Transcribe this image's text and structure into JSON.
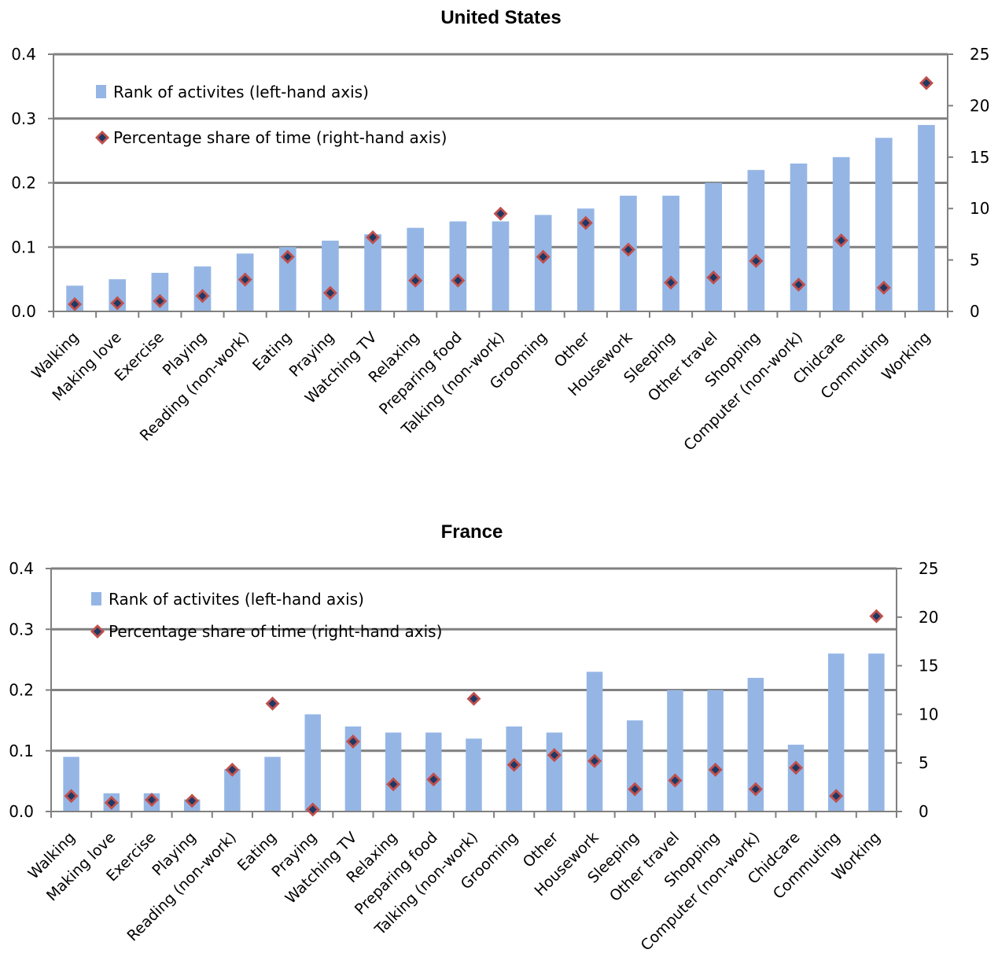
{
  "colors": {
    "bar": "#95B6E5",
    "marker_outer": "#C0504D",
    "marker_inner": "#1F3864",
    "gridline": "#808080",
    "axis": "#808080"
  },
  "chart_data": [
    {
      "type": "bar",
      "title": "United States",
      "categories": [
        "Walking",
        "Making love",
        "Exercise",
        "Playing",
        "Reading (non-work)",
        "Eating",
        "Praying",
        "Watching TV",
        "Relaxing",
        "Preparing food",
        "Talking (non-work)",
        "Grooming",
        "Other",
        "Housework",
        "Sleeping",
        "Other travel",
        "Shopping",
        "Computer (non-work)",
        "Chidcare",
        "Commuting",
        "Working"
      ],
      "series": [
        {
          "name": "Rank of activites (left-hand axis)",
          "axis": "left",
          "kind": "bar",
          "values": [
            0.04,
            0.05,
            0.06,
            0.07,
            0.09,
            0.1,
            0.11,
            0.12,
            0.13,
            0.14,
            0.14,
            0.15,
            0.16,
            0.18,
            0.18,
            0.2,
            0.22,
            0.23,
            0.24,
            0.27,
            0.29
          ]
        },
        {
          "name": "Percentage share of time (right-hand axis)",
          "axis": "right",
          "kind": "marker",
          "values": [
            0.7,
            0.8,
            1.0,
            1.5,
            3.1,
            5.3,
            1.8,
            7.2,
            3.0,
            3.0,
            9.5,
            5.3,
            8.6,
            6.0,
            2.8,
            3.3,
            4.9,
            2.6,
            6.9,
            2.3,
            22.2
          ]
        }
      ],
      "ylim_left": [
        0,
        0.4
      ],
      "ylim_right": [
        0,
        25
      ],
      "left_ticks": [
        "0.0",
        "0.1",
        "0.2",
        "0.3",
        "0.4"
      ],
      "right_ticks": [
        "0",
        "5",
        "10",
        "15",
        "20",
        "25"
      ],
      "gridlines": "horizontal at left-axis ticks",
      "legend": "top-left, inside plot"
    },
    {
      "type": "bar",
      "title": "France",
      "categories": [
        "Walking",
        "Making love",
        "Exercise",
        "Playing",
        "Reading (non-work)",
        "Eating",
        "Praying",
        "Watching TV",
        "Relaxing",
        "Preparing food",
        "Talking (non-work)",
        "Grooming",
        "Other",
        "Housework",
        "Sleeping",
        "Other travel",
        "Shopping",
        "Computer (non-work)",
        "Chidcare",
        "Commuting",
        "Working"
      ],
      "series": [
        {
          "name": "Rank of activites (left-hand axis)",
          "axis": "left",
          "kind": "bar",
          "values": [
            0.09,
            0.03,
            0.03,
            0.02,
            0.07,
            0.09,
            0.16,
            0.14,
            0.13,
            0.13,
            0.12,
            0.14,
            0.13,
            0.23,
            0.15,
            0.2,
            0.2,
            0.22,
            0.11,
            0.26,
            0.26
          ]
        },
        {
          "name": "Percentage share of time (right-hand axis)",
          "axis": "right",
          "kind": "marker",
          "values": [
            1.6,
            0.9,
            1.2,
            1.1,
            4.3,
            11.1,
            0.2,
            7.2,
            2.8,
            3.3,
            11.6,
            4.8,
            5.8,
            5.2,
            2.3,
            3.2,
            4.3,
            2.3,
            4.5,
            1.6,
            20.1
          ]
        }
      ],
      "ylim_left": [
        0,
        0.4
      ],
      "ylim_right": [
        0,
        25
      ],
      "left_ticks": [
        "0.0",
        "0.1",
        "0.2",
        "0.3",
        "0.4"
      ],
      "right_ticks": [
        "0",
        "5",
        "10",
        "15",
        "20",
        "25"
      ],
      "gridlines": "horizontal at left-axis ticks",
      "legend": "top-left, inside plot"
    }
  ]
}
